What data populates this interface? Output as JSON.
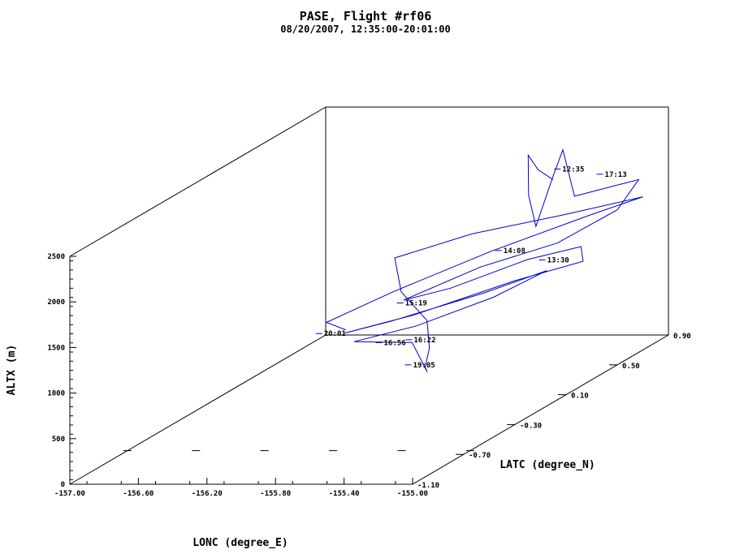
{
  "chart_data": {
    "type": "line",
    "title": "PASE, Flight #rf06",
    "subtitle": "08/20/2007, 12:35:00-20:01:00",
    "xlabel": "LONC (degree_E)",
    "ylabel": "LATC (degree_N)",
    "zlabel": "ALTX (m)",
    "xlim": [
      -157.0,
      -155.0
    ],
    "ylim": [
      -1.1,
      0.9
    ],
    "zlim": [
      0,
      2500
    ],
    "x_ticks": [
      "-157.00",
      "-156.60",
      "-156.20",
      "-155.80",
      "-155.40",
      "-155.00"
    ],
    "y_ticks": [
      "-1.10",
      "-0.70",
      "-0.30",
      "0.10",
      "0.50",
      "0.90"
    ],
    "z_ticks": [
      "0",
      "500",
      "1000",
      "1500",
      "2000",
      "2500"
    ],
    "line_color": "#0000cc",
    "time_labels": [
      {
        "text": "12:35",
        "lon": -155.42,
        "lat": 0.62,
        "alt": 2050
      },
      {
        "text": "13:30",
        "lon": -155.21,
        "lat": 0.22,
        "alt": 1380
      },
      {
        "text": "14:08",
        "lon": -155.45,
        "lat": 0.2,
        "alt": 1500
      },
      {
        "text": "15:19",
        "lon": -155.8,
        "lat": -0.1,
        "alt": 1170
      },
      {
        "text": "16:22",
        "lon": -155.6,
        "lat": -0.3,
        "alt": 930
      },
      {
        "text": "16:56",
        "lon": -155.7,
        "lat": -0.4,
        "alt": 980
      },
      {
        "text": "17:13",
        "lon": -155.12,
        "lat": 0.55,
        "alt": 2050
      },
      {
        "text": "19:05",
        "lon": -155.38,
        "lat": -0.6,
        "alt": 900
      },
      {
        "text": "20:01",
        "lon": -156.05,
        "lat": -0.4,
        "alt": 1080
      }
    ],
    "track": [
      [
        -155.45,
        0.6,
        1950
      ],
      [
        -155.5,
        0.55,
        2100
      ],
      [
        -155.52,
        0.5,
        2300
      ],
      [
        -155.48,
        0.45,
        1900
      ],
      [
        -155.4,
        0.4,
        1600
      ],
      [
        -155.3,
        0.4,
        2150
      ],
      [
        -155.28,
        0.45,
        2400
      ],
      [
        -155.25,
        0.5,
        1850
      ],
      [
        -155.1,
        0.55,
        1900
      ],
      [
        -154.95,
        0.6,
        1950
      ],
      [
        -155.0,
        0.5,
        1700
      ],
      [
        -155.2,
        0.3,
        1500
      ],
      [
        -155.5,
        0.1,
        1400
      ],
      [
        -155.8,
        -0.1,
        1200
      ],
      [
        -155.6,
        0.0,
        1250
      ],
      [
        -155.3,
        0.2,
        1400
      ],
      [
        -155.1,
        0.35,
        1420
      ],
      [
        -155.05,
        0.3,
        1300
      ],
      [
        -155.3,
        0.1,
        1250
      ],
      [
        -155.7,
        -0.15,
        1080
      ],
      [
        -156.0,
        -0.3,
        1000
      ],
      [
        -155.8,
        -0.2,
        1050
      ],
      [
        -155.4,
        0.0,
        1200
      ],
      [
        -155.15,
        0.15,
        1320
      ],
      [
        -155.35,
        0.0,
        1150
      ],
      [
        -155.65,
        -0.2,
        1000
      ],
      [
        -155.9,
        -0.35,
        950
      ],
      [
        -155.6,
        -0.3,
        900
      ],
      [
        -155.4,
        -0.45,
        700
      ],
      [
        -155.3,
        -0.6,
        880
      ],
      [
        -155.35,
        -0.5,
        1000
      ],
      [
        -155.55,
        -0.25,
        1100
      ],
      [
        -155.85,
        -0.05,
        1250
      ],
      [
        -156.0,
        0.1,
        1500
      ],
      [
        -155.7,
        0.3,
        1600
      ],
      [
        -155.3,
        0.5,
        1650
      ],
      [
        -155.0,
        0.7,
        1680
      ],
      [
        -155.2,
        0.55,
        1600
      ],
      [
        -155.55,
        0.25,
        1450
      ],
      [
        -155.9,
        -0.05,
        1250
      ],
      [
        -156.1,
        -0.3,
        1120
      ],
      [
        -155.95,
        -0.35,
        1080
      ]
    ]
  }
}
